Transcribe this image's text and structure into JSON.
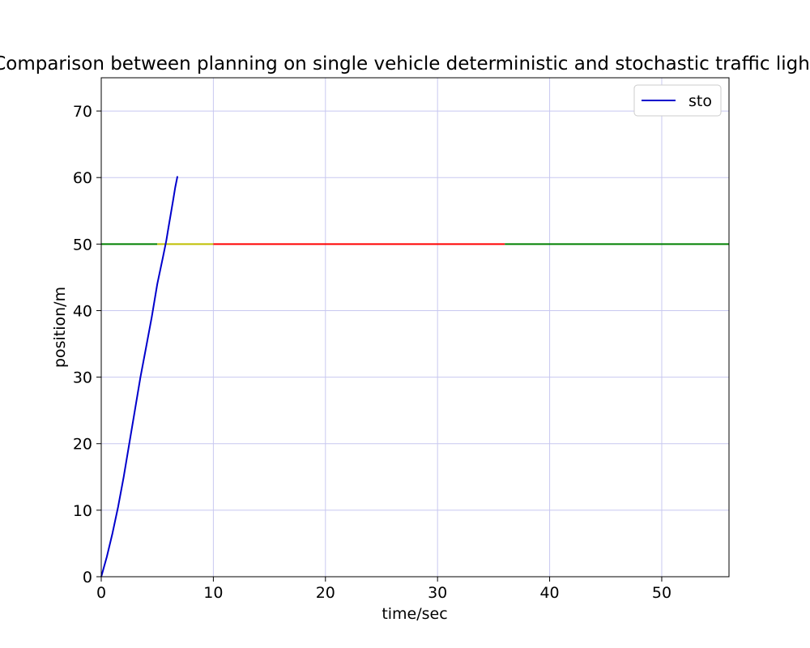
{
  "chart_data": {
    "type": "line",
    "title": "Comparison between planning on single vehicle deterministic and stochastic traffic light",
    "xlabel": "time/sec",
    "ylabel": "position/m",
    "xlim": [
      0,
      56
    ],
    "ylim": [
      0,
      75
    ],
    "xticks": [
      "0",
      "10",
      "20",
      "30",
      "40",
      "50"
    ],
    "yticks": [
      "0",
      "10",
      "20",
      "30",
      "40",
      "50",
      "60",
      "70"
    ],
    "grid": true,
    "grid_color": "#c8c8f0",
    "legend_position": "upper right",
    "series": [
      {
        "name": "sto",
        "color": "#0000cc",
        "x": [
          0,
          0.5,
          1.0,
          1.5,
          2.0,
          2.5,
          3.0,
          3.5,
          4.0,
          4.5,
          5.0,
          5.5,
          5.8,
          6.0,
          6.2,
          6.4,
          6.6,
          6.8
        ],
        "y": [
          0,
          3,
          6.5,
          10.5,
          15,
          20,
          25,
          30,
          34.5,
          39,
          44,
          48,
          50.5,
          52.5,
          54.5,
          56.5,
          58.5,
          60.2
        ]
      }
    ],
    "traffic_light": {
      "position": 50,
      "segments": [
        {
          "state": "green",
          "color": "#008000",
          "start": 0,
          "end": 5
        },
        {
          "state": "yellow",
          "color": "#bfbf00",
          "start": 5,
          "end": 10
        },
        {
          "state": "red",
          "color": "#ff0000",
          "start": 10,
          "end": 36
        },
        {
          "state": "green",
          "color": "#008000",
          "start": 36,
          "end": 56
        }
      ]
    }
  }
}
